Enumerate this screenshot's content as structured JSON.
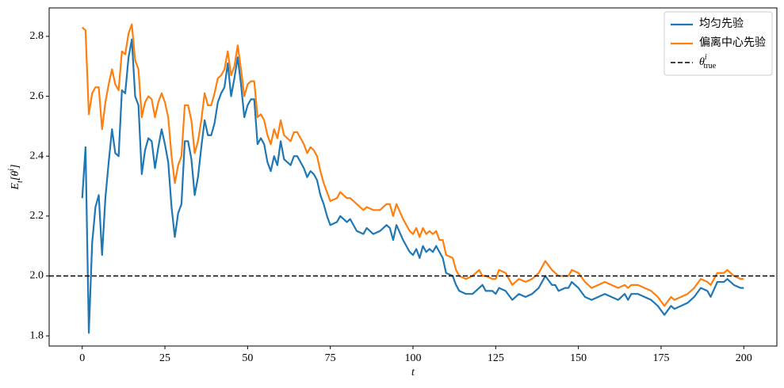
{
  "chart_data": {
    "type": "line",
    "x": [
      0,
      1,
      2,
      3,
      4,
      5,
      6,
      7,
      8,
      9,
      10,
      11,
      12,
      13,
      14,
      15,
      16,
      17,
      18,
      19,
      20,
      21,
      22,
      23,
      24,
      25,
      26,
      27,
      28,
      29,
      30,
      31,
      32,
      33,
      34,
      35,
      36,
      37,
      38,
      39,
      40,
      41,
      42,
      43,
      44,
      45,
      46,
      47,
      48,
      49,
      50,
      51,
      52,
      53,
      54,
      55,
      56,
      57,
      58,
      59,
      60,
      61,
      62,
      63,
      64,
      65,
      66,
      67,
      68,
      69,
      70,
      71,
      72,
      73,
      74,
      75,
      77,
      78,
      80,
      81,
      83,
      85,
      86,
      88,
      90,
      92,
      93,
      94,
      95,
      97,
      99,
      100,
      101,
      102,
      103,
      104,
      105,
      106,
      107,
      108,
      109,
      110,
      112,
      113,
      114,
      116,
      118,
      120,
      121,
      122,
      124,
      125,
      126,
      128,
      130,
      132,
      134,
      136,
      138,
      140,
      142,
      143,
      144,
      146,
      147,
      148,
      150,
      152,
      154,
      156,
      158,
      160,
      162,
      164,
      165,
      166,
      168,
      170,
      172,
      174,
      176,
      178,
      179,
      181,
      183,
      185,
      187,
      189,
      190,
      192,
      194,
      195,
      197,
      199,
      200
    ],
    "series": [
      {
        "name": "均匀先验",
        "color": "#1f77b4",
        "values": [
          2.26,
          2.43,
          1.81,
          2.11,
          2.23,
          2.27,
          2.07,
          2.26,
          2.38,
          2.49,
          2.41,
          2.4,
          2.62,
          2.61,
          2.73,
          2.79,
          2.6,
          2.57,
          2.34,
          2.42,
          2.46,
          2.45,
          2.36,
          2.43,
          2.49,
          2.44,
          2.38,
          2.23,
          2.13,
          2.21,
          2.24,
          2.45,
          2.45,
          2.39,
          2.27,
          2.33,
          2.43,
          2.52,
          2.47,
          2.47,
          2.51,
          2.58,
          2.61,
          2.63,
          2.71,
          2.6,
          2.66,
          2.73,
          2.64,
          2.53,
          2.57,
          2.59,
          2.59,
          2.44,
          2.46,
          2.44,
          2.38,
          2.35,
          2.4,
          2.37,
          2.45,
          2.39,
          2.38,
          2.37,
          2.4,
          2.4,
          2.38,
          2.36,
          2.33,
          2.35,
          2.34,
          2.32,
          2.27,
          2.24,
          2.2,
          2.17,
          2.18,
          2.2,
          2.18,
          2.19,
          2.15,
          2.14,
          2.16,
          2.14,
          2.15,
          2.17,
          2.16,
          2.12,
          2.17,
          2.12,
          2.08,
          2.07,
          2.09,
          2.06,
          2.1,
          2.08,
          2.09,
          2.08,
          2.1,
          2.08,
          2.06,
          2.01,
          2.0,
          1.97,
          1.95,
          1.94,
          1.94,
          1.96,
          1.97,
          1.95,
          1.95,
          1.94,
          1.96,
          1.95,
          1.92,
          1.94,
          1.93,
          1.94,
          1.96,
          2.0,
          1.97,
          1.97,
          1.95,
          1.96,
          1.96,
          1.98,
          1.96,
          1.93,
          1.92,
          1.93,
          1.94,
          1.93,
          1.92,
          1.94,
          1.92,
          1.94,
          1.94,
          1.93,
          1.92,
          1.9,
          1.87,
          1.9,
          1.89,
          1.9,
          1.91,
          1.93,
          1.96,
          1.95,
          1.93,
          1.98,
          1.98,
          1.99,
          1.97,
          1.96,
          1.96
        ]
      },
      {
        "name": "偏离中心先验",
        "color": "#ff7f0e",
        "values": [
          2.83,
          2.82,
          2.54,
          2.61,
          2.63,
          2.63,
          2.49,
          2.58,
          2.64,
          2.69,
          2.64,
          2.62,
          2.75,
          2.74,
          2.81,
          2.84,
          2.72,
          2.69,
          2.53,
          2.58,
          2.6,
          2.59,
          2.53,
          2.58,
          2.61,
          2.58,
          2.53,
          2.4,
          2.31,
          2.37,
          2.4,
          2.57,
          2.57,
          2.52,
          2.41,
          2.45,
          2.52,
          2.61,
          2.57,
          2.57,
          2.61,
          2.66,
          2.67,
          2.69,
          2.75,
          2.67,
          2.7,
          2.77,
          2.69,
          2.6,
          2.64,
          2.65,
          2.65,
          2.53,
          2.54,
          2.52,
          2.47,
          2.44,
          2.49,
          2.46,
          2.52,
          2.47,
          2.46,
          2.45,
          2.48,
          2.48,
          2.46,
          2.44,
          2.41,
          2.43,
          2.42,
          2.4,
          2.35,
          2.31,
          2.28,
          2.25,
          2.26,
          2.28,
          2.26,
          2.26,
          2.24,
          2.22,
          2.23,
          2.22,
          2.22,
          2.24,
          2.24,
          2.2,
          2.24,
          2.19,
          2.15,
          2.14,
          2.16,
          2.13,
          2.16,
          2.14,
          2.15,
          2.14,
          2.15,
          2.12,
          2.12,
          2.07,
          2.06,
          2.02,
          2.0,
          1.99,
          2.0,
          2.02,
          2.0,
          2.0,
          1.99,
          1.99,
          2.02,
          2.01,
          1.97,
          1.99,
          1.98,
          1.99,
          2.01,
          2.05,
          2.02,
          2.01,
          2.0,
          2.0,
          2.0,
          2.02,
          2.01,
          1.98,
          1.96,
          1.97,
          1.98,
          1.97,
          1.96,
          1.97,
          1.96,
          1.97,
          1.97,
          1.96,
          1.95,
          1.93,
          1.9,
          1.93,
          1.92,
          1.93,
          1.94,
          1.96,
          1.99,
          1.98,
          1.97,
          2.01,
          2.01,
          2.02,
          2.0,
          1.99,
          1.99
        ]
      }
    ],
    "hline": {
      "y": 2.0,
      "color": "#000000",
      "dashed": true,
      "name": "θ",
      "name_sup": "i",
      "name_sub": "true"
    },
    "xlabel": "t",
    "ylabel": [
      {
        "text": "E"
      },
      {
        "text": "t",
        "shift": "sub"
      },
      {
        "text": "[θ"
      },
      {
        "text": "i",
        "shift": "super"
      },
      {
        "text": "]"
      }
    ],
    "xlim": [
      -10,
      210
    ],
    "xticks": [
      0,
      25,
      50,
      75,
      100,
      125,
      150,
      175,
      200
    ],
    "ylim": [
      1.766,
      2.895
    ],
    "yticks": [
      {
        "value": 1.8,
        "label": "1.8"
      },
      {
        "value": 2.0,
        "label": "2.0"
      },
      {
        "value": 2.2,
        "label": "2.2"
      },
      {
        "value": 2.4,
        "label": "2.4"
      },
      {
        "value": 2.6,
        "label": "2.6"
      },
      {
        "value": 2.8,
        "label": "2.8"
      }
    ],
    "legend": "upper right"
  }
}
